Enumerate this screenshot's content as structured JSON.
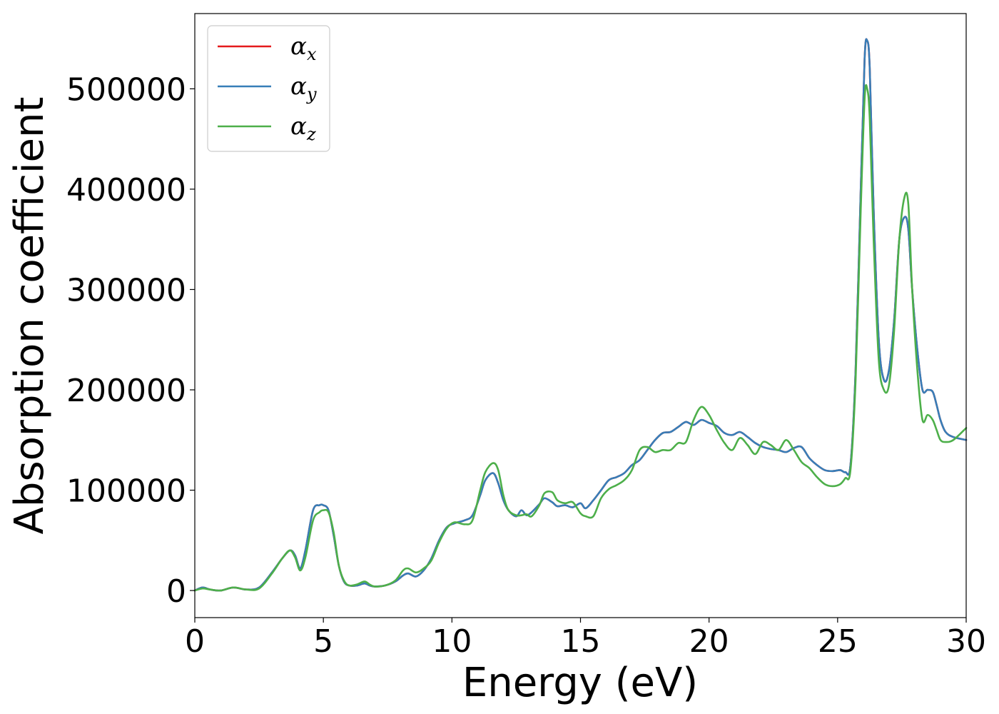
{
  "chart_data": {
    "type": "line",
    "title": "",
    "xlabel": "Energy (eV)",
    "ylabel": "Absorption coefficient",
    "xlim": [
      0,
      30
    ],
    "ylim": [
      -27000,
      575000
    ],
    "x_ticks": [
      0,
      5,
      10,
      15,
      20,
      25,
      30
    ],
    "x_tick_labels": [
      "0",
      "5",
      "10",
      "15",
      "20",
      "25",
      "30"
    ],
    "y_ticks": [
      0,
      100000,
      200000,
      300000,
      400000,
      500000
    ],
    "y_tick_labels": [
      "0",
      "100000",
      "200000",
      "300000",
      "400000",
      "500000"
    ],
    "grid": false,
    "legend_position": "top-left",
    "series": [
      {
        "name": "α_x",
        "legend_symbol": "α",
        "legend_subscript": "x",
        "color": "#e41a1c",
        "x": [
          0,
          0.3,
          0.6,
          1.0,
          1.5,
          2.0,
          2.5,
          3.0,
          3.4,
          3.7,
          3.9,
          4.1,
          4.3,
          4.6,
          4.85,
          5.0,
          5.2,
          5.4,
          5.6,
          5.8,
          6.0,
          6.3,
          6.6,
          6.8,
          7.0,
          7.4,
          7.8,
          8.1,
          8.3,
          8.6,
          8.9,
          9.2,
          9.5,
          9.8,
          10.1,
          10.5,
          10.8,
          11.1,
          11.3,
          11.6,
          11.8,
          12.0,
          12.2,
          12.5,
          12.7,
          12.9,
          13.1,
          13.4,
          13.6,
          13.9,
          14.1,
          14.4,
          14.7,
          15.0,
          15.2,
          15.5,
          15.8,
          16.1,
          16.4,
          16.7,
          17.0,
          17.3,
          17.6,
          17.9,
          18.2,
          18.5,
          18.8,
          19.1,
          19.4,
          19.7,
          20.0,
          20.3,
          20.6,
          20.9,
          21.2,
          21.5,
          21.8,
          22.1,
          22.4,
          22.7,
          23.0,
          23.3,
          23.6,
          23.9,
          24.2,
          24.5,
          24.8,
          25.1,
          25.3,
          25.5,
          25.7,
          25.9,
          26.05,
          26.15,
          26.25,
          26.4,
          26.6,
          26.8,
          27.0,
          27.2,
          27.4,
          27.6,
          27.75,
          27.9,
          28.1,
          28.3,
          28.5,
          28.7,
          28.85,
          29.0,
          29.2,
          29.5,
          30.0
        ],
        "y": [
          0,
          3000,
          1000,
          0,
          3000,
          1000,
          3000,
          18000,
          32000,
          40000,
          35000,
          22000,
          40000,
          80000,
          85000,
          85000,
          80000,
          55000,
          25000,
          9000,
          5000,
          5000,
          7000,
          5000,
          4000,
          5000,
          9000,
          15000,
          17000,
          14000,
          20000,
          32000,
          50000,
          63000,
          67000,
          70000,
          75000,
          95000,
          110000,
          117000,
          107000,
          90000,
          80000,
          74000,
          80000,
          75000,
          78000,
          86000,
          92000,
          88000,
          84000,
          85000,
          83000,
          87000,
          82000,
          90000,
          100000,
          110000,
          113000,
          117000,
          125000,
          130000,
          140000,
          150000,
          157000,
          158000,
          163000,
          168000,
          165000,
          170000,
          167000,
          164000,
          157000,
          155000,
          158000,
          153000,
          147000,
          143000,
          141000,
          140000,
          138000,
          142000,
          143000,
          132000,
          125000,
          120000,
          119000,
          120000,
          118000,
          125000,
          220000,
          400000,
          530000,
          548000,
          520000,
          380000,
          250000,
          210000,
          220000,
          270000,
          350000,
          372000,
          360000,
          300000,
          240000,
          200000,
          200000,
          198000,
          185000,
          170000,
          158000,
          153000,
          150000
        ]
      },
      {
        "name": "α_y",
        "legend_symbol": "α",
        "legend_subscript": "y",
        "color": "#377eb8",
        "x": [
          0,
          0.3,
          0.6,
          1.0,
          1.5,
          2.0,
          2.5,
          3.0,
          3.4,
          3.7,
          3.9,
          4.1,
          4.3,
          4.6,
          4.85,
          5.0,
          5.2,
          5.4,
          5.6,
          5.8,
          6.0,
          6.3,
          6.6,
          6.8,
          7.0,
          7.4,
          7.8,
          8.1,
          8.3,
          8.6,
          8.9,
          9.2,
          9.5,
          9.8,
          10.1,
          10.5,
          10.8,
          11.1,
          11.3,
          11.6,
          11.8,
          12.0,
          12.2,
          12.5,
          12.7,
          12.9,
          13.1,
          13.4,
          13.6,
          13.9,
          14.1,
          14.4,
          14.7,
          15.0,
          15.2,
          15.5,
          15.8,
          16.1,
          16.4,
          16.7,
          17.0,
          17.3,
          17.6,
          17.9,
          18.2,
          18.5,
          18.8,
          19.1,
          19.4,
          19.7,
          20.0,
          20.3,
          20.6,
          20.9,
          21.2,
          21.5,
          21.8,
          22.1,
          22.4,
          22.7,
          23.0,
          23.3,
          23.6,
          23.9,
          24.2,
          24.5,
          24.8,
          25.1,
          25.3,
          25.5,
          25.7,
          25.9,
          26.05,
          26.15,
          26.25,
          26.4,
          26.6,
          26.8,
          27.0,
          27.2,
          27.4,
          27.6,
          27.75,
          27.9,
          28.1,
          28.3,
          28.5,
          28.7,
          28.85,
          29.0,
          29.2,
          29.5,
          30.0
        ],
        "y": [
          0,
          3000,
          1000,
          0,
          3000,
          1000,
          3000,
          18000,
          32000,
          40000,
          35000,
          22000,
          40000,
          80000,
          85000,
          85000,
          80000,
          55000,
          25000,
          9000,
          5000,
          5000,
          7000,
          5000,
          4000,
          5000,
          9000,
          15000,
          17000,
          14000,
          20000,
          32000,
          50000,
          63000,
          67000,
          70000,
          75000,
          95000,
          110000,
          117000,
          107000,
          90000,
          80000,
          74000,
          80000,
          75000,
          78000,
          86000,
          92000,
          88000,
          84000,
          85000,
          83000,
          87000,
          82000,
          90000,
          100000,
          110000,
          113000,
          117000,
          125000,
          130000,
          140000,
          150000,
          157000,
          158000,
          163000,
          168000,
          165000,
          170000,
          167000,
          164000,
          157000,
          155000,
          158000,
          153000,
          147000,
          143000,
          141000,
          140000,
          138000,
          142000,
          143000,
          132000,
          125000,
          120000,
          119000,
          120000,
          118000,
          125000,
          220000,
          400000,
          530000,
          548000,
          520000,
          380000,
          250000,
          210000,
          220000,
          270000,
          350000,
          372000,
          360000,
          300000,
          240000,
          200000,
          200000,
          198000,
          185000,
          170000,
          158000,
          153000,
          150000
        ]
      },
      {
        "name": "α_z",
        "legend_symbol": "α",
        "legend_subscript": "z",
        "color": "#4daf4a",
        "x": [
          0,
          0.3,
          0.6,
          1.0,
          1.5,
          2.0,
          2.5,
          3.0,
          3.4,
          3.7,
          3.9,
          4.1,
          4.3,
          4.6,
          4.85,
          5.0,
          5.2,
          5.4,
          5.6,
          5.8,
          6.0,
          6.3,
          6.6,
          6.8,
          7.0,
          7.4,
          7.8,
          8.1,
          8.3,
          8.6,
          8.9,
          9.2,
          9.5,
          9.8,
          10.1,
          10.5,
          10.8,
          11.1,
          11.3,
          11.6,
          11.8,
          12.0,
          12.2,
          12.5,
          12.7,
          12.9,
          13.1,
          13.4,
          13.6,
          13.9,
          14.1,
          14.4,
          14.7,
          15.0,
          15.2,
          15.5,
          15.8,
          16.1,
          16.4,
          16.7,
          17.0,
          17.3,
          17.6,
          17.9,
          18.2,
          18.5,
          18.8,
          19.1,
          19.4,
          19.7,
          20.0,
          20.3,
          20.6,
          20.9,
          21.2,
          21.5,
          21.8,
          22.1,
          22.4,
          22.7,
          23.0,
          23.3,
          23.6,
          23.9,
          24.2,
          24.5,
          24.8,
          25.1,
          25.3,
          25.5,
          25.7,
          25.9,
          26.05,
          26.15,
          26.25,
          26.4,
          26.6,
          26.8,
          27.0,
          27.2,
          27.4,
          27.6,
          27.75,
          27.9,
          28.1,
          28.3,
          28.5,
          28.7,
          28.85,
          29.0,
          29.2,
          29.5,
          30.0
        ],
        "y": [
          0,
          2000,
          1000,
          0,
          3000,
          1000,
          2000,
          17000,
          32000,
          40000,
          33000,
          20000,
          33000,
          70000,
          78000,
          80000,
          78000,
          58000,
          25000,
          10000,
          5000,
          6000,
          9000,
          6000,
          4000,
          5000,
          10000,
          20000,
          22000,
          18000,
          22000,
          30000,
          48000,
          62000,
          68000,
          66000,
          70000,
          100000,
          118000,
          127000,
          120000,
          95000,
          80000,
          75000,
          75000,
          76000,
          74000,
          85000,
          97000,
          98000,
          90000,
          87000,
          88000,
          77000,
          74000,
          74000,
          92000,
          101000,
          105000,
          110000,
          120000,
          140000,
          143000,
          138000,
          140000,
          140000,
          147000,
          148000,
          170000,
          183000,
          175000,
          160000,
          147000,
          140000,
          152000,
          145000,
          136000,
          148000,
          145000,
          140000,
          150000,
          140000,
          128000,
          122000,
          113000,
          106000,
          104000,
          106000,
          112000,
          120000,
          210000,
          380000,
          490000,
          500000,
          470000,
          350000,
          230000,
          200000,
          205000,
          260000,
          350000,
          392000,
          385000,
          300000,
          220000,
          170000,
          175000,
          170000,
          160000,
          150000,
          148000,
          150000,
          162000
        ]
      }
    ]
  }
}
